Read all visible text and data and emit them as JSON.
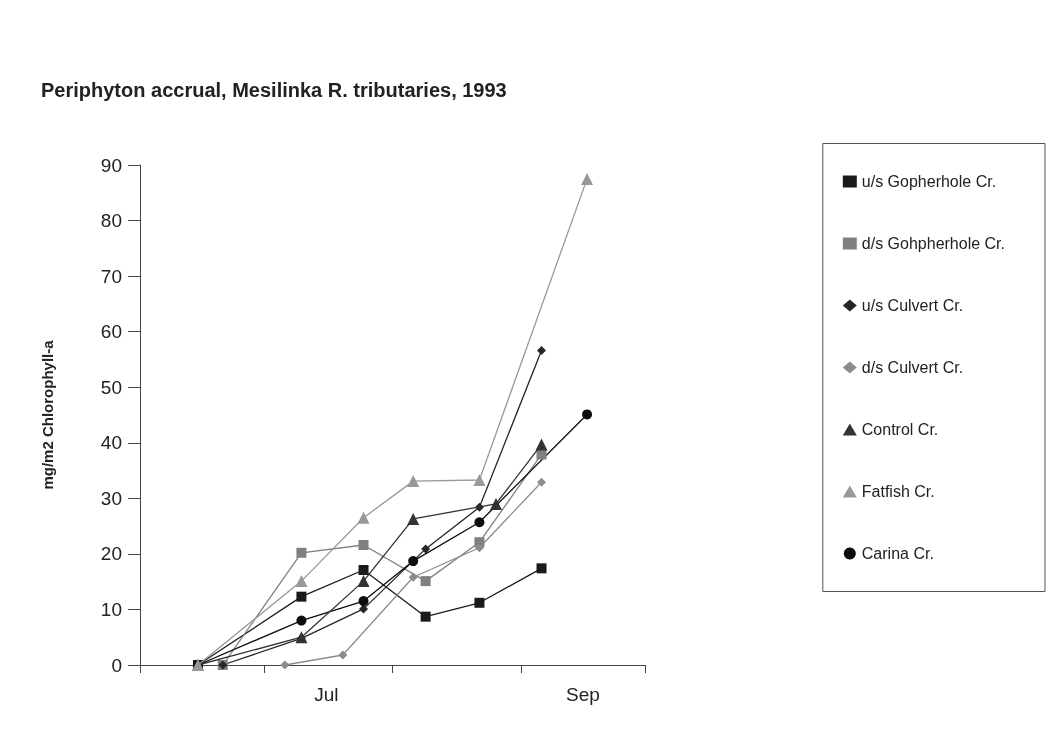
{
  "chart_data": {
    "type": "line",
    "title": "Periphyton accrual, Mesilinka R. tributaries, 1993",
    "ylabel": "mg/m2 Chlorophyll-a",
    "xlim": [
      "1993-06-01",
      "1993-10-01"
    ],
    "xticks": [
      {
        "value": "1993-06-01",
        "label": null
      },
      {
        "value": "1993-07-01",
        "label": null
      },
      {
        "value": "1993-07-16",
        "label": "Jul"
      },
      {
        "value": "1993-08-01",
        "label": null
      },
      {
        "value": "1993-09-01",
        "label": null
      },
      {
        "value": "1993-09-16",
        "label": "Sep"
      },
      {
        "value": "1993-10-01",
        "label": null
      }
    ],
    "ylim": [
      0,
      90
    ],
    "yticks": [
      0,
      10,
      20,
      30,
      40,
      50,
      60,
      70,
      80,
      90
    ],
    "grid": false,
    "legend": "right",
    "series": [
      {
        "name": "u/s Gopherhole Cr.",
        "color": "#1a1a1a",
        "marker": "square",
        "x": [
          "1993-06-15",
          "1993-07-10",
          "1993-07-25",
          "1993-08-09",
          "1993-08-22",
          "1993-09-06"
        ],
        "values": [
          0,
          12.3,
          17.1,
          8.7,
          11.2,
          17.4
        ]
      },
      {
        "name": "d/s Gohpherhole Cr.",
        "color": "#808080",
        "marker": "square",
        "x": [
          "1993-06-21",
          "1993-07-10",
          "1993-07-25",
          "1993-08-09",
          "1993-08-22",
          "1993-09-06"
        ],
        "values": [
          0,
          20.2,
          21.6,
          15.1,
          22.1,
          37.9
        ]
      },
      {
        "name": "u/s Culvert Cr.",
        "color": "#262626",
        "marker": "diamond",
        "x": [
          "1993-06-21",
          "1993-07-10",
          "1993-07-25",
          "1993-08-09",
          "1993-08-22",
          "1993-09-06"
        ],
        "values": [
          0,
          4.8,
          10.1,
          20.9,
          28.4,
          56.6
        ]
      },
      {
        "name": "d/s Culvert Cr.",
        "color": "#8c8c8c",
        "marker": "diamond",
        "x": [
          "1993-07-06",
          "1993-07-20",
          "1993-08-06",
          "1993-08-22",
          "1993-09-06"
        ],
        "values": [
          0,
          1.8,
          15.8,
          21.1,
          32.9
        ]
      },
      {
        "name": "Control Cr.",
        "color": "#333333",
        "marker": "triangle",
        "x": [
          "1993-06-15",
          "1993-07-10",
          "1993-07-25",
          "1993-08-06",
          "1993-08-26",
          "1993-09-06"
        ],
        "values": [
          0,
          5.0,
          15.1,
          26.3,
          29.0,
          39.7
        ]
      },
      {
        "name": "Fatfish Cr.",
        "color": "#999999",
        "marker": "triangle",
        "x": [
          "1993-06-15",
          "1993-07-10",
          "1993-07-25",
          "1993-08-06",
          "1993-08-22",
          "1993-09-17"
        ],
        "values": [
          0,
          15.1,
          26.5,
          33.1,
          33.3,
          87.5
        ]
      },
      {
        "name": "Carina Cr.",
        "color": "#0d0d0d",
        "marker": "circle",
        "x": [
          "1993-06-15",
          "1993-07-10",
          "1993-07-25",
          "1993-08-06",
          "1993-08-22",
          "1993-09-17"
        ],
        "values": [
          0,
          8.0,
          11.5,
          18.7,
          25.7,
          45.1
        ]
      }
    ]
  }
}
